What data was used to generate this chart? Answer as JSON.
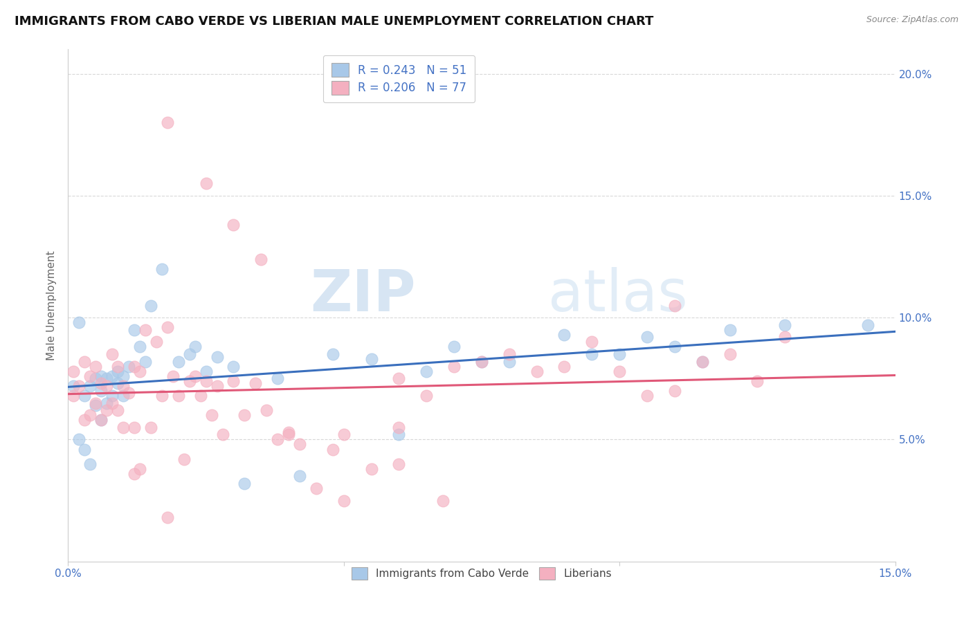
{
  "title": "IMMIGRANTS FROM CABO VERDE VS LIBERIAN MALE UNEMPLOYMENT CORRELATION CHART",
  "source": "Source: ZipAtlas.com",
  "ylabel_label": "Male Unemployment",
  "xlim": [
    0.0,
    0.15
  ],
  "ylim": [
    0.0,
    0.21
  ],
  "yticks": [
    0.05,
    0.1,
    0.15,
    0.2
  ],
  "ytick_labels": [
    "5.0%",
    "10.0%",
    "15.0%",
    "20.0%"
  ],
  "xticks": [
    0.0,
    0.05,
    0.1,
    0.15
  ],
  "xtick_labels": [
    "0.0%",
    "",
    "",
    "15.0%"
  ],
  "r_cabo": 0.243,
  "n_cabo": 51,
  "r_lib": 0.206,
  "n_lib": 77,
  "cabo_color": "#a8c8e8",
  "lib_color": "#f4b0c0",
  "line_cabo_color": "#3a6fbd",
  "line_lib_color": "#e05878",
  "watermark_zip": "ZIP",
  "watermark_atlas": "atlas",
  "background_color": "#ffffff",
  "grid_color": "#d8d8d8",
  "axis_color": "#cccccc",
  "tick_color": "#4472C4",
  "title_fontsize": 13,
  "label_fontsize": 11,
  "tick_fontsize": 11,
  "cabo_x": [
    0.001,
    0.002,
    0.002,
    0.003,
    0.003,
    0.004,
    0.004,
    0.005,
    0.005,
    0.006,
    0.006,
    0.006,
    0.007,
    0.007,
    0.008,
    0.008,
    0.009,
    0.009,
    0.01,
    0.01,
    0.011,
    0.012,
    0.013,
    0.014,
    0.015,
    0.017,
    0.02,
    0.022,
    0.023,
    0.025,
    0.027,
    0.03,
    0.032,
    0.038,
    0.042,
    0.048,
    0.055,
    0.06,
    0.065,
    0.07,
    0.075,
    0.08,
    0.09,
    0.095,
    0.1,
    0.105,
    0.11,
    0.115,
    0.12,
    0.13,
    0.145
  ],
  "cabo_y": [
    0.072,
    0.098,
    0.05,
    0.068,
    0.046,
    0.072,
    0.04,
    0.075,
    0.064,
    0.076,
    0.07,
    0.058,
    0.075,
    0.065,
    0.076,
    0.068,
    0.078,
    0.073,
    0.076,
    0.068,
    0.08,
    0.095,
    0.088,
    0.082,
    0.105,
    0.12,
    0.082,
    0.085,
    0.088,
    0.078,
    0.084,
    0.08,
    0.032,
    0.075,
    0.035,
    0.085,
    0.083,
    0.052,
    0.078,
    0.088,
    0.082,
    0.082,
    0.093,
    0.085,
    0.085,
    0.092,
    0.088,
    0.082,
    0.095,
    0.097,
    0.097
  ],
  "lib_x": [
    0.001,
    0.001,
    0.002,
    0.003,
    0.003,
    0.004,
    0.004,
    0.005,
    0.005,
    0.006,
    0.006,
    0.007,
    0.007,
    0.008,
    0.008,
    0.009,
    0.009,
    0.01,
    0.01,
    0.011,
    0.012,
    0.012,
    0.013,
    0.013,
    0.014,
    0.015,
    0.016,
    0.017,
    0.018,
    0.019,
    0.02,
    0.021,
    0.022,
    0.023,
    0.024,
    0.025,
    0.026,
    0.027,
    0.028,
    0.03,
    0.032,
    0.034,
    0.036,
    0.038,
    0.04,
    0.042,
    0.045,
    0.048,
    0.05,
    0.055,
    0.06,
    0.06,
    0.065,
    0.068,
    0.07,
    0.075,
    0.08,
    0.085,
    0.09,
    0.095,
    0.1,
    0.105,
    0.11,
    0.115,
    0.12,
    0.125,
    0.13,
    0.018,
    0.025,
    0.03,
    0.035,
    0.04,
    0.012,
    0.018,
    0.05,
    0.06,
    0.11
  ],
  "lib_y": [
    0.078,
    0.068,
    0.072,
    0.082,
    0.058,
    0.076,
    0.06,
    0.08,
    0.065,
    0.073,
    0.058,
    0.072,
    0.062,
    0.085,
    0.065,
    0.08,
    0.062,
    0.072,
    0.055,
    0.069,
    0.08,
    0.055,
    0.078,
    0.038,
    0.095,
    0.055,
    0.09,
    0.068,
    0.096,
    0.076,
    0.068,
    0.042,
    0.074,
    0.076,
    0.068,
    0.074,
    0.06,
    0.072,
    0.052,
    0.074,
    0.06,
    0.073,
    0.062,
    0.05,
    0.052,
    0.048,
    0.03,
    0.046,
    0.052,
    0.038,
    0.055,
    0.075,
    0.068,
    0.025,
    0.08,
    0.082,
    0.085,
    0.078,
    0.08,
    0.09,
    0.078,
    0.068,
    0.07,
    0.082,
    0.085,
    0.074,
    0.092,
    0.18,
    0.155,
    0.138,
    0.124,
    0.053,
    0.036,
    0.018,
    0.025,
    0.04,
    0.105
  ]
}
